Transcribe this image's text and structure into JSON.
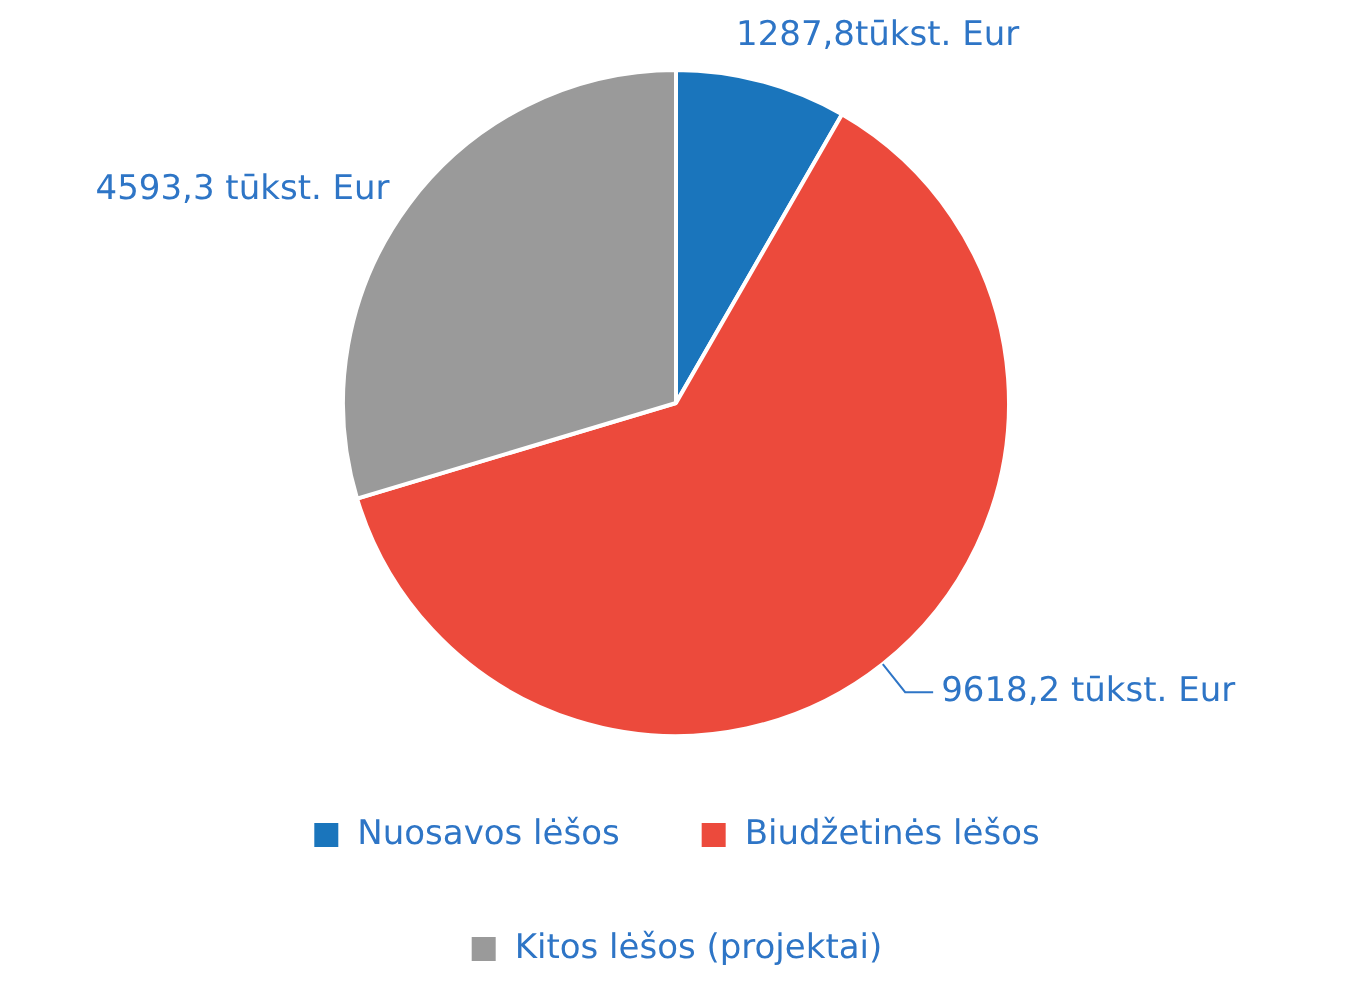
{
  "chart_data": {
    "type": "pie",
    "categories": [
      "Nuosavos lėšos",
      "Biudžetinės lėšos",
      "Kitos lėšos (projektai)"
    ],
    "values": [
      1287.8,
      9618.2,
      4593.3
    ],
    "colors": [
      "#1a75bc",
      "#ec4a3c",
      "#9a9a9a"
    ],
    "value_labels": [
      "1287,8tūkst. Eur",
      "9618,2 tūkst. Eur",
      "4593,3 tūkst. Eur"
    ],
    "legend": "bottom"
  }
}
